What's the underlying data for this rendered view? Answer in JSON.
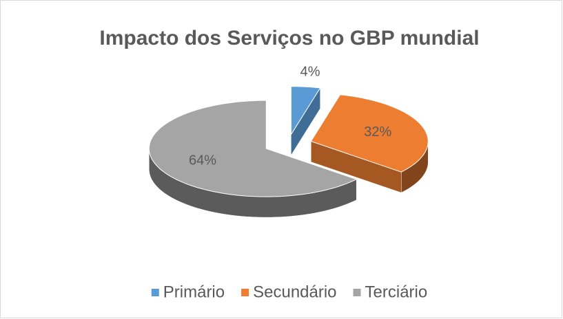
{
  "chart_data": {
    "type": "pie3d",
    "title": "Impacto dos Serviços no GBP mundial",
    "categories": [
      "Primário",
      "Secundário",
      "Terciário"
    ],
    "values": [
      4,
      32,
      64
    ],
    "value_labels": [
      "4%",
      "32%",
      "64%"
    ],
    "colors": [
      "#5b9bd5",
      "#ed7d31",
      "#a5a5a5"
    ],
    "legend": "bottom"
  }
}
